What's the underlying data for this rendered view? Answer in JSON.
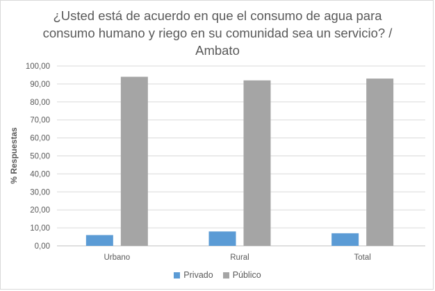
{
  "chart_data": {
    "type": "bar",
    "title": "¿Usted está de acuerdo en que el consumo de agua para consumo humano y riego en su comunidad sea un servicio? / Ambato",
    "xlabel": "",
    "ylabel": "% Respuestas",
    "categories": [
      "Urbano",
      "Rural",
      "Total"
    ],
    "series": [
      {
        "name": "Privado",
        "values": [
          6.0,
          8.0,
          7.0
        ],
        "color": "#5b9bd5"
      },
      {
        "name": "Público",
        "values": [
          94.0,
          92.0,
          93.0
        ],
        "color": "#a5a5a5"
      }
    ],
    "ylim": [
      0,
      100
    ],
    "yticks": [
      "0,00",
      "10,00",
      "20,00",
      "30,00",
      "40,00",
      "50,00",
      "60,00",
      "70,00",
      "80,00",
      "90,00",
      "100,00"
    ],
    "grid": true,
    "legend": "bottom",
    "gridline_color": "#d9d9d9",
    "axis_color": "#bfbfbf"
  }
}
